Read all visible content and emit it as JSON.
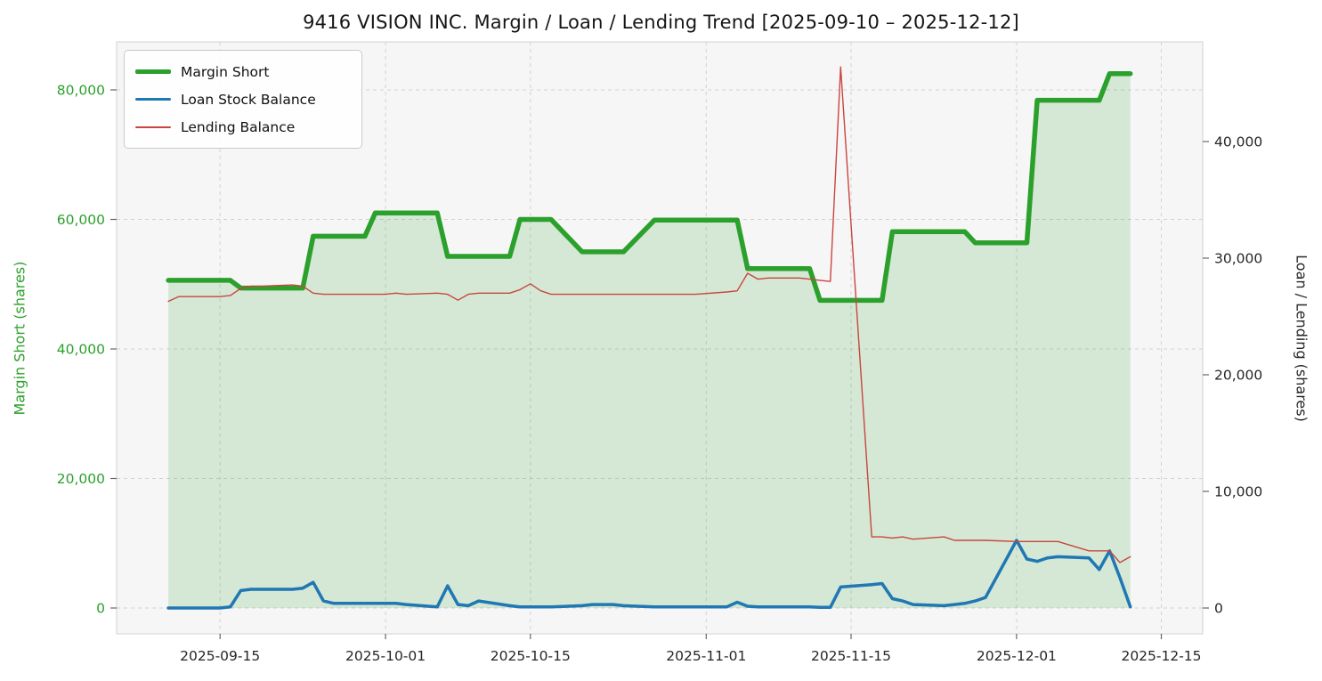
{
  "title": "9416 VISION INC. Margin / Loan / Lending Trend [2025-09-10 – 2025-12-12]",
  "axes": {
    "left_label": "Margin Short (shares)",
    "right_label": "Loan / Lending (shares)",
    "x_ticks": [
      "2025-09-15",
      "2025-10-01",
      "2025-10-15",
      "2025-11-01",
      "2025-11-15",
      "2025-12-01",
      "2025-12-15"
    ],
    "left_ticks": {
      "values": [
        0,
        20000,
        40000,
        60000,
        80000
      ],
      "labels": [
        "0",
        "20,000",
        "40,000",
        "60,000",
        "80,000"
      ]
    },
    "right_ticks": {
      "values": [
        0,
        10000,
        20000,
        30000,
        40000
      ],
      "labels": [
        "0",
        "10,000",
        "20,000",
        "30,000",
        "40,000"
      ]
    }
  },
  "colors": {
    "margin_short": "#2ca02c",
    "loan_stock": "#1f77b4",
    "lending": "#c9453f",
    "left_axis_text": "#2ca02c",
    "right_axis_text": "#262626",
    "plot_background": "#f6f6f6",
    "gridline": "#cccccc"
  },
  "chart_data": {
    "type": "line",
    "title": "9416 VISION INC. Margin / Loan / Lending Trend [2025-09-10 – 2025-12-12]",
    "xlabel": "",
    "ylabel_left": "Margin Short (shares)",
    "ylabel_right": "Loan / Lending (shares)",
    "x_range": [
      "2025-09-10",
      "2025-12-12"
    ],
    "left_ylim": [
      0,
      87000
    ],
    "right_ylim": [
      0,
      48500
    ],
    "grid": true,
    "legend_position": "upper-left",
    "x": [
      "2025-09-10",
      "2025-09-11",
      "2025-09-12",
      "2025-09-15",
      "2025-09-16",
      "2025-09-17",
      "2025-09-18",
      "2025-09-19",
      "2025-09-22",
      "2025-09-23",
      "2025-09-24",
      "2025-09-25",
      "2025-09-26",
      "2025-09-29",
      "2025-09-30",
      "2025-10-01",
      "2025-10-02",
      "2025-10-03",
      "2025-10-06",
      "2025-10-07",
      "2025-10-08",
      "2025-10-09",
      "2025-10-10",
      "2025-10-13",
      "2025-10-14",
      "2025-10-15",
      "2025-10-16",
      "2025-10-17",
      "2025-10-20",
      "2025-10-21",
      "2025-10-22",
      "2025-10-23",
      "2025-10-24",
      "2025-10-27",
      "2025-10-28",
      "2025-10-29",
      "2025-10-30",
      "2025-10-31",
      "2025-11-03",
      "2025-11-04",
      "2025-11-05",
      "2025-11-06",
      "2025-11-07",
      "2025-11-10",
      "2025-11-11",
      "2025-11-12",
      "2025-11-13",
      "2025-11-14",
      "2025-11-17",
      "2025-11-18",
      "2025-11-19",
      "2025-11-20",
      "2025-11-21",
      "2025-11-24",
      "2025-11-25",
      "2025-11-26",
      "2025-11-27",
      "2025-11-28",
      "2025-12-01",
      "2025-12-02",
      "2025-12-03",
      "2025-12-04",
      "2025-12-05",
      "2025-12-08",
      "2025-12-09",
      "2025-12-10",
      "2025-12-11",
      "2025-12-12"
    ],
    "series": [
      {
        "name": "Margin Short",
        "key": "margin-short",
        "axis": "left",
        "color": "#2ca02c",
        "line_width": 5.5,
        "fill": true,
        "fill_opacity": 0.16,
        "values": [
          50600,
          50600,
          50600,
          50600,
          50600,
          49400,
          49400,
          49400,
          49400,
          49400,
          57400,
          57400,
          57400,
          57400,
          61000,
          61000,
          61000,
          61000,
          61000,
          54300,
          54300,
          54300,
          54300,
          54300,
          60000,
          60000,
          60000,
          60000,
          55000,
          55000,
          55000,
          55000,
          55000,
          59900,
          59900,
          59900,
          59900,
          59900,
          59900,
          59900,
          52400,
          52400,
          52400,
          52400,
          52400,
          47500,
          47500,
          47500,
          47500,
          47500,
          58100,
          58100,
          58100,
          58100,
          58100,
          58100,
          56400,
          56400,
          56400,
          56400,
          78400,
          78400,
          78400,
          78400,
          78400,
          82500,
          82500,
          82500
        ]
      },
      {
        "name": "Loan Stock Balance",
        "key": "loan-stock",
        "axis": "right",
        "color": "#1f77b4",
        "line_width": 3.5,
        "fill": false,
        "values": [
          0,
          0,
          0,
          0,
          100,
          1500,
          1600,
          1600,
          1600,
          1700,
          2200,
          600,
          400,
          400,
          400,
          400,
          400,
          300,
          100,
          1900,
          300,
          200,
          600,
          200,
          100,
          100,
          100,
          100,
          200,
          300,
          300,
          300,
          200,
          100,
          100,
          100,
          100,
          100,
          100,
          500,
          150,
          100,
          100,
          100,
          100,
          50,
          50,
          1800,
          2000,
          2100,
          800,
          600,
          300,
          200,
          300,
          400,
          600,
          900,
          5800,
          4200,
          4000,
          4300,
          4400,
          4300,
          3300,
          4900,
          2600,
          100
        ]
      },
      {
        "name": "Lending Balance",
        "key": "lending",
        "axis": "right",
        "color": "#c9453f",
        "line_width": 1.4,
        "fill": false,
        "values": [
          26300,
          26700,
          26700,
          26700,
          26800,
          27400,
          27600,
          27600,
          27700,
          27600,
          27000,
          26900,
          26900,
          26900,
          26900,
          26900,
          27000,
          26900,
          27000,
          26900,
          26400,
          26900,
          27000,
          27000,
          27300,
          27800,
          27200,
          26900,
          26900,
          26900,
          26900,
          26900,
          26900,
          26900,
          26900,
          26900,
          26900,
          26900,
          27100,
          27200,
          28700,
          28200,
          28300,
          28300,
          28200,
          28100,
          28000,
          46400,
          6100,
          6100,
          6000,
          6100,
          5900,
          6100,
          5800,
          5800,
          5800,
          5800,
          5700,
          5700,
          5700,
          5700,
          5700,
          4900,
          4900,
          4900,
          3900,
          4400
        ]
      }
    ]
  }
}
